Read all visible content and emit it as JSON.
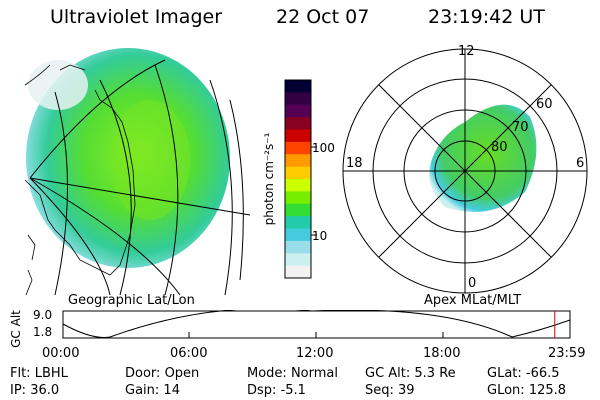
{
  "header": {
    "instrument": "Ultraviolet Imager",
    "date": "22 Oct 07",
    "time": "23:19:42 UT"
  },
  "panels": {
    "left_label": "Geographic Lat/Lon",
    "right_label": "Apex MLat/MLT"
  },
  "colorbar": {
    "unit": "photon cm⁻²s⁻¹",
    "ticks": [
      "100",
      "10"
    ],
    "colors": [
      "#000033",
      "#330044",
      "#550055",
      "#880022",
      "#cc0000",
      "#ff4400",
      "#ff9900",
      "#ffcc00",
      "#ccff00",
      "#77ee00",
      "#33dd33",
      "#22ccaa",
      "#44ccdd",
      "#99dde8",
      "#ccf0f0",
      "#f2f2f2"
    ]
  },
  "polar": {
    "mlt_labels": {
      "top": "12",
      "left": "18",
      "right": "6",
      "bottom": "0"
    },
    "mlat_labels": [
      "60",
      "70",
      "80"
    ]
  },
  "altitude_plot": {
    "ylabel": "GC Alt",
    "yticks": [
      "9.0",
      "1.8"
    ],
    "xticks": [
      "00:00",
      "06:00",
      "12:00",
      "18:00",
      "23:59"
    ],
    "marker_time_fraction": 0.97,
    "marker_color": "#cc0000"
  },
  "status": {
    "row1": [
      {
        "key": "Flt:",
        "val": "LBHL"
      },
      {
        "key": "Door:",
        "val": "Open"
      },
      {
        "key": "Mode:",
        "val": "Normal"
      },
      {
        "key": "GC Alt:",
        "val": "5.3 Re"
      },
      {
        "key": "GLat:",
        "val": "-66.5"
      }
    ],
    "row2": [
      {
        "key": "IP:",
        "val": "36.0"
      },
      {
        "key": "Gain:",
        "val": "14"
      },
      {
        "key": "Dsp:",
        "val": "-5.1"
      },
      {
        "key": "Seq:",
        "val": "39"
      },
      {
        "key": "GLon:",
        "val": "125.8"
      }
    ]
  }
}
